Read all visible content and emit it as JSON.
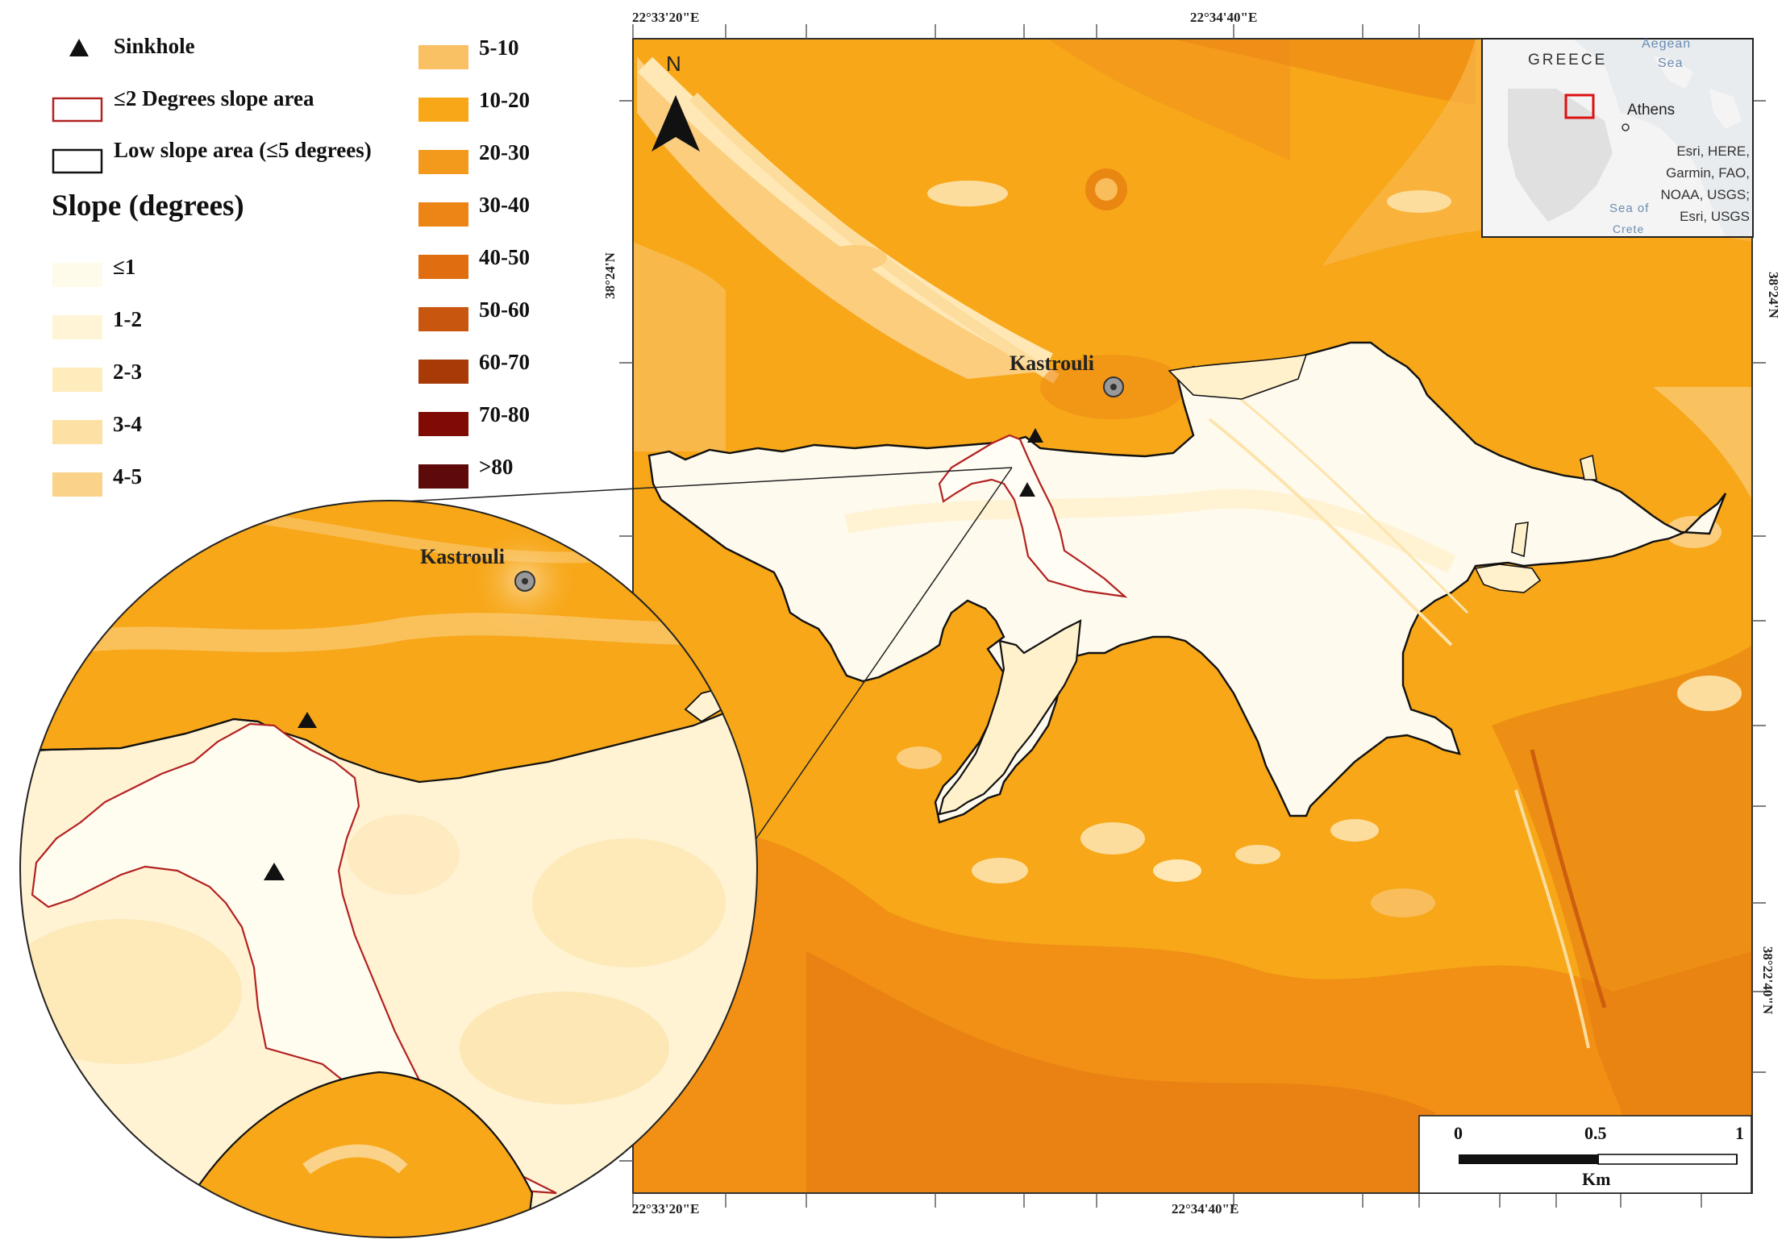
{
  "legend": {
    "sinkhole_label": "Sinkhole",
    "low2_label": "≤2 Degrees slope area",
    "low5_label": "Low slope area (≤5 degrees)",
    "slope_title": "Slope (degrees)",
    "classes_left": [
      {
        "label": "≤1",
        "color": "#fffbea"
      },
      {
        "label": "1-2",
        "color": "#fff5d6"
      },
      {
        "label": "2-3",
        "color": "#ffecbc"
      },
      {
        "label": "3-4",
        "color": "#fde0a3"
      },
      {
        "label": "4-5",
        "color": "#fbd289"
      }
    ],
    "classes_right": [
      {
        "label": "5-10",
        "color": "#f9c064"
      },
      {
        "label": "10-20",
        "color": "#f7a718"
      },
      {
        "label": "20-30",
        "color": "#f39a1c"
      },
      {
        "label": "30-40",
        "color": "#ec8515"
      },
      {
        "label": "40-50",
        "color": "#e06d10"
      },
      {
        "label": "50-60",
        "color": "#c8560e"
      },
      {
        "label": "60-70",
        "color": "#a83a08"
      },
      {
        "label": "70-80",
        "color": "#800a04"
      },
      {
        "label": ">80",
        "color": "#5e0a0a"
      }
    ]
  },
  "map": {
    "north_label": "N",
    "place_label": "Kastrouli",
    "zoom_place_label": "Kastrouli",
    "top_coords": [
      "22°33'20\"E",
      "22°34'40\"E"
    ],
    "bottom_coords": [
      "22°33'20\"E",
      "22°34'40\"E"
    ],
    "left_coord": "38°24'N",
    "right_coords": [
      "38°24'N",
      "38°22'40\"N"
    ]
  },
  "scalebar": {
    "ticks": [
      "0",
      "0.5",
      "1"
    ],
    "unit": "Km"
  },
  "inset": {
    "country": "GREECE",
    "sea1": "Aegean",
    "sea2": "Sea",
    "city": "Athens",
    "sea3a": "Sea of",
    "sea3b": "Crete",
    "credits": [
      "Esri, HERE,",
      "Garmin, FAO,",
      "NOAA, USGS;",
      "Esri, USGS"
    ]
  }
}
